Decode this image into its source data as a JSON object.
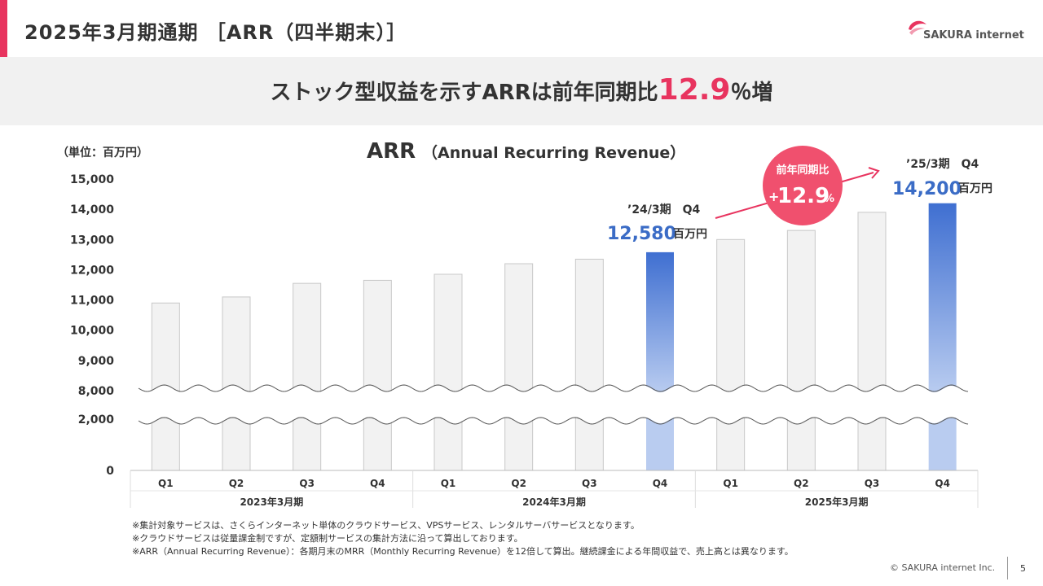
{
  "header": {
    "title": "2025年3月期通期 ［ARR（四半期末）］"
  },
  "logo": {
    "text": "SAKURA internet"
  },
  "banner": {
    "prefix": "ストック型収益を示すARRは前年同期比",
    "highlight": "12.9",
    "suffix": "％増"
  },
  "chart_data": {
    "type": "bar",
    "title": "ARR",
    "subtitle": "（Annual Recurring Revenue）",
    "unit_label": "（単位：百万円）",
    "y_ticks_upper": [
      8000,
      9000,
      10000,
      11000,
      12000,
      13000,
      14000,
      15000
    ],
    "y_ticks_lower": [
      0,
      2000
    ],
    "y_tick_labels_upper": [
      "8,000",
      "9,000",
      "10,000",
      "11,000",
      "12,000",
      "13,000",
      "14,000",
      "15,000"
    ],
    "y_tick_labels_lower": [
      "0",
      "2,000"
    ],
    "ylim_upper": [
      8000,
      15000
    ],
    "axis_break": true,
    "categories": [
      "Q1",
      "Q2",
      "Q3",
      "Q4",
      "Q1",
      "Q2",
      "Q3",
      "Q4",
      "Q1",
      "Q2",
      "Q3",
      "Q4"
    ],
    "groups": [
      {
        "label": "2023年3月期",
        "count": 4
      },
      {
        "label": "2024年3月期",
        "count": 4
      },
      {
        "label": "2025年3月期",
        "count": 4
      }
    ],
    "values": [
      10900,
      11100,
      11550,
      11650,
      11850,
      12200,
      12350,
      12580,
      13000,
      13300,
      13900,
      14200
    ],
    "highlight_indices": [
      7,
      11
    ],
    "colors": {
      "bar": "#f2f2f2",
      "bar_stroke": "#c8c8c8",
      "highlight_top": "#3f6fd1",
      "highlight_bottom": "#b9ccf0",
      "accent": "#e8345f",
      "value_text": "#3b6cc6"
    },
    "callouts": [
      {
        "period": "’24/3期　Q4",
        "value": "12,580",
        "unit": "百万円"
      },
      {
        "period": "’25/3期　Q4",
        "value": "14,200",
        "unit": "百万円"
      }
    ],
    "growth_badge": {
      "label": "前年同期比",
      "sign": "+",
      "value": "12.9",
      "unit": "%"
    }
  },
  "notes": [
    "※集計対象サービスは、さくらインターネット単体のクラウドサービス、VPSサービス、レンタルサーバサービスとなります。",
    "※クラウドサービスは従量課金制ですが、定額制サービスの集計方法に沿って算出しております。",
    "※ARR（Annual Recurring Revenue）：各期月末のMRR（Monthly Recurring Revenue）を12倍して算出。継続課金による年間収益で、売上高とは異なります。"
  ],
  "footer": {
    "copyright": "© SAKURA internet Inc.",
    "page": "5"
  }
}
